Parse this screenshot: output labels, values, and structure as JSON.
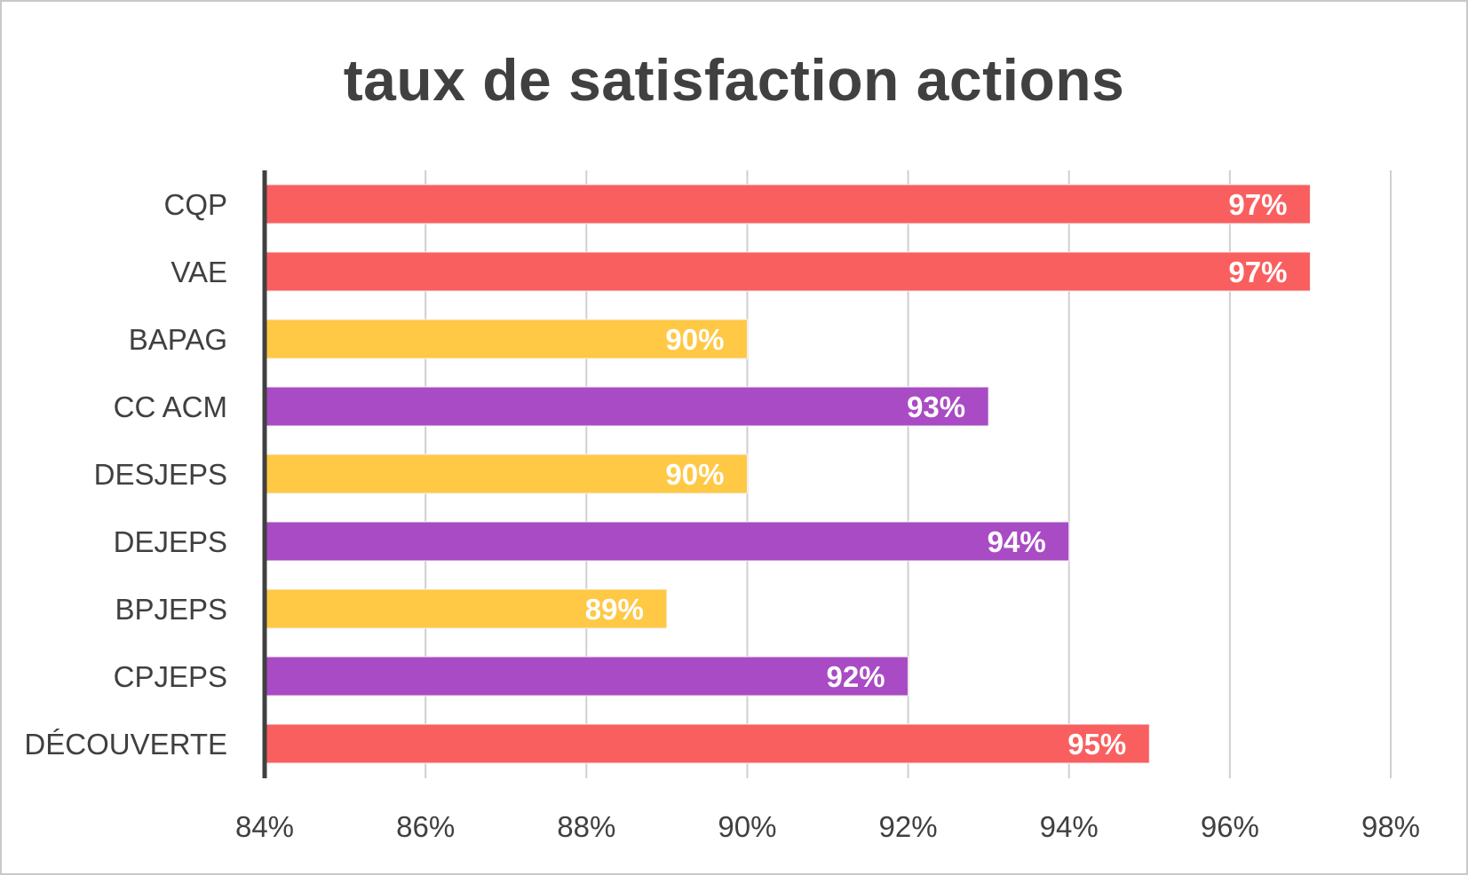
{
  "chart_data": {
    "type": "bar",
    "orientation": "horizontal",
    "title": "taux de satisfaction actions",
    "xlabel": "",
    "ylabel": "",
    "xlim": [
      84,
      98
    ],
    "tick_values": [
      84,
      86,
      88,
      90,
      92,
      94,
      96,
      98
    ],
    "tick_labels": [
      "84%",
      "86%",
      "88%",
      "90%",
      "92%",
      "94%",
      "96%",
      "98%"
    ],
    "grid": true,
    "legend": "none",
    "categories": [
      "CQP",
      "VAE",
      "BAPAG",
      "CC ACM",
      "DESJEPS",
      "DEJEPS",
      "BPJEPS",
      "CPJEPS",
      "DÉCOUVERTE"
    ],
    "values": [
      97,
      97,
      90,
      93,
      90,
      94,
      89,
      92,
      95
    ],
    "data_labels": [
      "97%",
      "97%",
      "90%",
      "93%",
      "90%",
      "94%",
      "89%",
      "92%",
      "95%"
    ],
    "bar_colors": [
      "#F95F5F",
      "#F95F5F",
      "#FFC845",
      "#A94BC4",
      "#FFC845",
      "#A94BC4",
      "#FFC845",
      "#A94BC4",
      "#F95F5F"
    ]
  },
  "colors": {
    "grid": "#d0d0d0",
    "axis": "#404040",
    "text": "#404040"
  }
}
